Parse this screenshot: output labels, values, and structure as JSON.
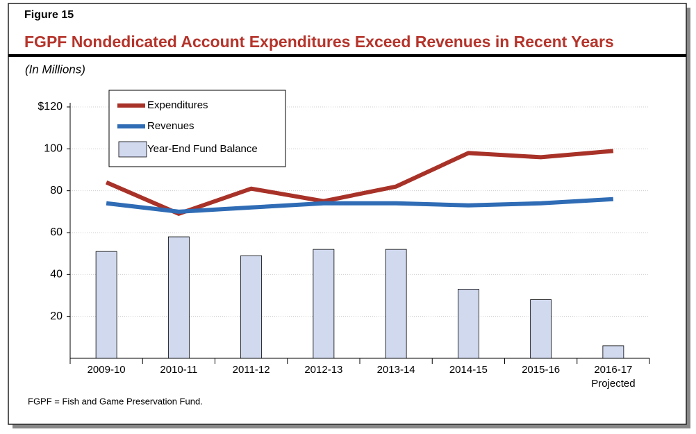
{
  "figure_label": "Figure 15",
  "footnote": "FGPF = Fish and Game Preservation Fund.",
  "chart_data": {
    "type": "combo",
    "title": "FGPF Nondedicated Account Expenditures Exceed Revenues in Recent Years",
    "subtitle": "(In Millions)",
    "categories": [
      "2009-10",
      "2010-11",
      "2011-12",
      "2012-13",
      "2013-14",
      "2014-15",
      "2015-16",
      "2016-17"
    ],
    "last_category_note": "Projected",
    "ylim": [
      0,
      120
    ],
    "yticks": [
      20,
      40,
      60,
      80,
      100,
      {
        "value": 120,
        "label": "$120"
      }
    ],
    "grid": true,
    "legend": "top-left",
    "series": [
      {
        "name": "Expenditures",
        "type": "line",
        "color": "#a83228",
        "values": [
          84,
          69,
          81,
          75,
          82,
          98,
          96,
          99
        ]
      },
      {
        "name": "Revenues",
        "type": "line",
        "color": "#2f6cb5",
        "values": [
          74,
          70,
          72,
          74,
          74,
          73,
          74,
          76
        ]
      },
      {
        "name": "Year-End Fund Balance",
        "type": "bar",
        "color": "#d1d9ef",
        "values": [
          51,
          58,
          49,
          52,
          52,
          33,
          28,
          6
        ]
      }
    ]
  }
}
